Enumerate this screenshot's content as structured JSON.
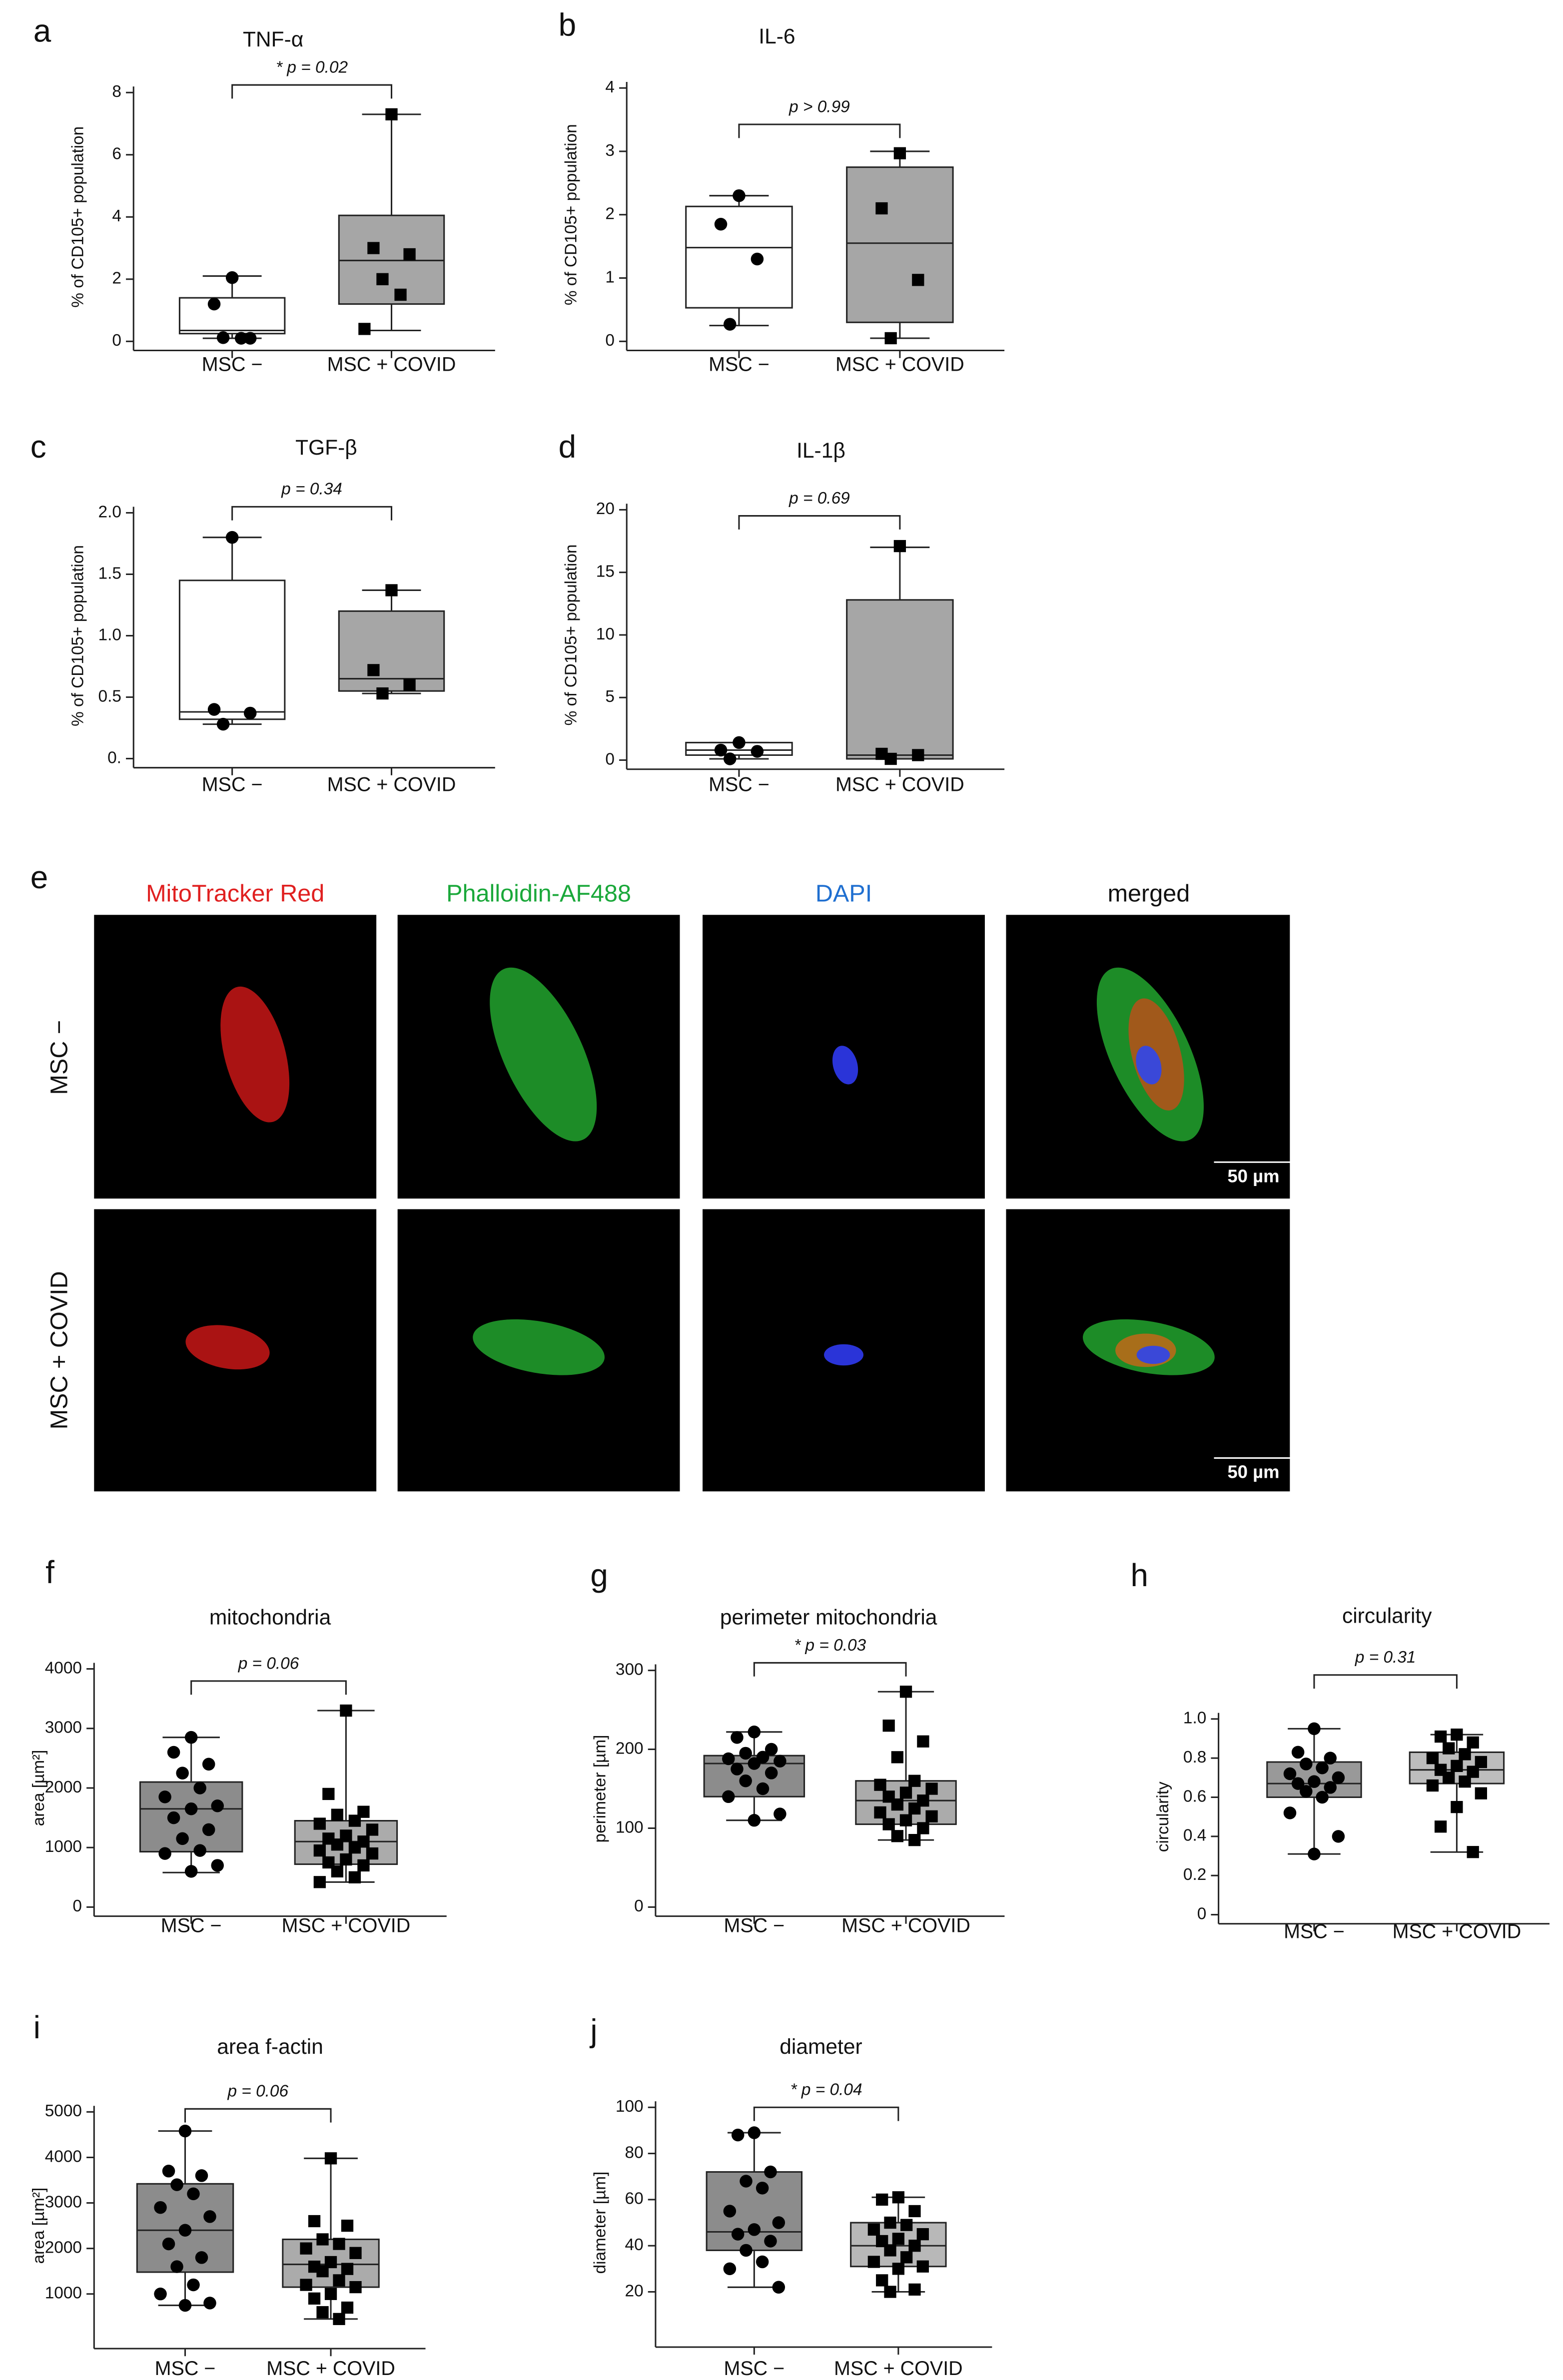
{
  "chart_data": [
    {
      "type": "box",
      "panel_label": "a",
      "title": "TNF-α",
      "ylabel": "% of CD105+ population",
      "categories": [
        "MSC −",
        "MSC + COVID"
      ],
      "annotation": "* p = 0.02",
      "ylim": [
        0,
        8
      ],
      "yticks": [
        0,
        2,
        4,
        6,
        8
      ],
      "box_colors": [
        "#ffffff",
        "#a6a6a6"
      ],
      "markers": [
        "circle",
        "square"
      ],
      "boxes": [
        {
          "min": 0.1,
          "q1": 0.25,
          "median": 0.35,
          "q3": 1.4,
          "max": 2.1,
          "points": [
            2.05,
            1.2,
            0.1,
            0.12,
            0.1
          ]
        },
        {
          "min": 0.35,
          "q1": 1.2,
          "median": 2.6,
          "q3": 4.05,
          "max": 7.3,
          "points": [
            7.3,
            3.0,
            2.8,
            2.0,
            1.5,
            0.4
          ]
        }
      ]
    },
    {
      "type": "box",
      "panel_label": "b",
      "title": "IL-6",
      "ylabel": "% of CD105+ population",
      "categories": [
        "MSC −",
        "MSC + COVID"
      ],
      "annotation": "p > 0.99",
      "ylim": [
        0,
        4
      ],
      "yticks": [
        0,
        1,
        2,
        3,
        4
      ],
      "box_colors": [
        "#ffffff",
        "#a6a6a6"
      ],
      "markers": [
        "circle",
        "square"
      ],
      "boxes": [
        {
          "min": 0.25,
          "q1": 0.53,
          "median": 1.48,
          "q3": 2.13,
          "max": 2.3,
          "points": [
            2.3,
            1.85,
            1.3,
            0.27
          ]
        },
        {
          "min": 0.05,
          "q1": 0.3,
          "median": 1.55,
          "q3": 2.75,
          "max": 3.0,
          "points": [
            2.97,
            2.1,
            0.97,
            0.05
          ]
        }
      ]
    },
    {
      "type": "box",
      "panel_label": "c",
      "title": "TGF-β",
      "ylabel": "% of CD105+ population",
      "categories": [
        "MSC −",
        "MSC + COVID"
      ],
      "annotation": "p = 0.34",
      "ylim": [
        0,
        2
      ],
      "yticks": [
        {
          "value": 0,
          "label": "0."
        },
        0.5,
        {
          "value": 1,
          "label": "1.0"
        },
        1.5,
        {
          "value": 2,
          "label": "2.0"
        }
      ],
      "box_colors": [
        "#ffffff",
        "#a6a6a6"
      ],
      "markers": [
        "circle",
        "square"
      ],
      "boxes": [
        {
          "min": 0.28,
          "q1": 0.32,
          "median": 0.38,
          "q3": 1.45,
          "max": 1.8,
          "points": [
            1.8,
            0.4,
            0.37,
            0.28
          ]
        },
        {
          "min": 0.53,
          "q1": 0.55,
          "median": 0.65,
          "q3": 1.2,
          "max": 1.37,
          "points": [
            1.37,
            0.72,
            0.6,
            0.53
          ]
        }
      ]
    },
    {
      "type": "box",
      "panel_label": "d",
      "title": "IL-1β",
      "ylabel": "% of CD105+ population",
      "categories": [
        "MSC −",
        "MSC + COVID"
      ],
      "annotation": "p = 0.69",
      "ylim": [
        0,
        20
      ],
      "yticks": [
        0,
        5,
        10,
        15,
        20
      ],
      "box_colors": [
        "#ffffff",
        "#a6a6a6"
      ],
      "markers": [
        "circle",
        "square"
      ],
      "boxes": [
        {
          "min": 0.1,
          "q1": 0.4,
          "median": 0.8,
          "q3": 1.4,
          "max": 1.4,
          "points": [
            1.4,
            0.8,
            0.7,
            0.1
          ]
        },
        {
          "min": 0.1,
          "q1": 0.1,
          "median": 0.4,
          "q3": 12.8,
          "max": 17,
          "points": [
            17.1,
            0.5,
            0.4,
            0.1
          ]
        }
      ]
    },
    {
      "type": "box",
      "panel_label": "f",
      "title": "mitochondria",
      "ylabel": "area [µm²]",
      "categories": [
        "MSC −",
        "MSC + COVID"
      ],
      "annotation": "p = 0.06",
      "ylim": [
        0,
        4000
      ],
      "yticks": [
        0,
        1000,
        2000,
        3000,
        4000
      ],
      "box_colors": [
        "#8c8c8c",
        "#ababab"
      ],
      "markers": [
        "circle",
        "square"
      ],
      "boxes": [
        {
          "min": 580,
          "q1": 930,
          "median": 1650,
          "q3": 2100,
          "max": 2850,
          "points": [
            2850,
            2600,
            2400,
            2250,
            2000,
            1850,
            1700,
            1650,
            1500,
            1300,
            1150,
            950,
            900,
            700,
            600
          ]
        },
        {
          "min": 420,
          "q1": 720,
          "median": 1100,
          "q3": 1450,
          "max": 3300,
          "points": [
            3300,
            1900,
            1600,
            1550,
            1450,
            1400,
            1300,
            1200,
            1150,
            1100,
            1050,
            1000,
            950,
            900,
            800,
            750,
            700,
            600,
            500,
            420
          ]
        }
      ]
    },
    {
      "type": "box",
      "panel_label": "g",
      "title": "perimeter mitochondria",
      "ylabel": "perimeter [µm]",
      "categories": [
        "MSC −",
        "MSC + COVID"
      ],
      "annotation": "* p = 0.03",
      "ylim": [
        0,
        300
      ],
      "yticks": [
        0,
        100,
        200,
        300
      ],
      "box_colors": [
        "#8c8c8c",
        "#ababab"
      ],
      "markers": [
        "circle",
        "square"
      ],
      "boxes": [
        {
          "min": 110,
          "q1": 140,
          "median": 182,
          "q3": 192,
          "max": 222,
          "points": [
            222,
            215,
            200,
            195,
            190,
            188,
            185,
            182,
            175,
            170,
            160,
            150,
            140,
            118,
            110
          ]
        },
        {
          "min": 85,
          "q1": 105,
          "median": 135,
          "q3": 160,
          "max": 273,
          "points": [
            273,
            230,
            210,
            190,
            160,
            155,
            150,
            145,
            140,
            135,
            130,
            125,
            120,
            115,
            110,
            105,
            100,
            90,
            85
          ]
        }
      ]
    },
    {
      "type": "box",
      "panel_label": "h",
      "title": "circularity",
      "ylabel": "circularity",
      "categories": [
        "MSC −",
        "MSC + COVID"
      ],
      "annotation": "p = 0.31",
      "ylim": [
        0,
        1
      ],
      "yticks": [
        0,
        0.2,
        0.4,
        0.6,
        0.8,
        {
          "value": 1,
          "label": "1.0"
        }
      ],
      "box_colors": [
        "#999999",
        "#bdbdbd"
      ],
      "markers": [
        "circle",
        "square"
      ],
      "boxes": [
        {
          "min": 0.31,
          "q1": 0.6,
          "median": 0.67,
          "q3": 0.78,
          "max": 0.95,
          "points": [
            0.95,
            0.83,
            0.8,
            0.77,
            0.75,
            0.72,
            0.7,
            0.68,
            0.67,
            0.65,
            0.63,
            0.6,
            0.52,
            0.4,
            0.31
          ]
        },
        {
          "min": 0.32,
          "q1": 0.67,
          "median": 0.74,
          "q3": 0.83,
          "max": 0.92,
          "points": [
            0.92,
            0.91,
            0.88,
            0.85,
            0.82,
            0.8,
            0.78,
            0.76,
            0.74,
            0.73,
            0.7,
            0.68,
            0.66,
            0.62,
            0.55,
            0.45,
            0.32
          ]
        }
      ]
    },
    {
      "type": "box",
      "panel_label": "i",
      "title": "area f-actin",
      "ylabel": "area [µm²]",
      "categories": [
        "MSC −",
        "MSC + COVID"
      ],
      "annotation": "p = 0.06",
      "ylim": [
        0,
        5000
      ],
      "yticks": [
        1000,
        2000,
        3000,
        4000,
        5000
      ],
      "box_colors": [
        "#8c8c8c",
        "#ababab"
      ],
      "markers": [
        "circle",
        "square"
      ],
      "boxes": [
        {
          "min": 750,
          "q1": 1480,
          "median": 2400,
          "q3": 3420,
          "max": 4580,
          "points": [
            4580,
            3700,
            3600,
            3400,
            3200,
            2900,
            2700,
            2400,
            2100,
            1800,
            1600,
            1200,
            1000,
            800,
            750
          ]
        },
        {
          "min": 450,
          "q1": 1150,
          "median": 1650,
          "q3": 2200,
          "max": 3980,
          "points": [
            3980,
            2600,
            2500,
            2200,
            2100,
            2000,
            1900,
            1700,
            1600,
            1550,
            1500,
            1300,
            1200,
            1150,
            1000,
            900,
            700,
            600,
            450
          ]
        }
      ]
    },
    {
      "type": "box",
      "panel_label": "j",
      "title": "diameter",
      "ylabel": "diameter [µm]",
      "categories": [
        "MSC −",
        "MSC + COVID"
      ],
      "annotation": "* p = 0.04",
      "ylim": [
        0,
        100
      ],
      "yticks": [
        20,
        40,
        60,
        80,
        100
      ],
      "box_colors": [
        "#8c8c8c",
        "#b8b8b8"
      ],
      "markers": [
        "circle",
        "square"
      ],
      "boxes": [
        {
          "min": 22,
          "q1": 38,
          "median": 46,
          "q3": 72,
          "max": 89,
          "points": [
            89,
            88,
            72,
            68,
            65,
            55,
            50,
            47,
            45,
            42,
            38,
            33,
            30,
            22
          ]
        },
        {
          "min": 20,
          "q1": 31,
          "median": 40,
          "q3": 50,
          "max": 61,
          "points": [
            61,
            60,
            55,
            50,
            49,
            47,
            45,
            43,
            42,
            40,
            38,
            35,
            33,
            31,
            30,
            25,
            21,
            20
          ]
        }
      ]
    }
  ],
  "microscopy": {
    "panel_label": "e",
    "columns": [
      "MitoTracker Red",
      "Phalloidin-AF488",
      "DAPI",
      "merged"
    ],
    "rows": [
      "MSC −",
      "MSC + COVID"
    ],
    "scale_bars": [
      "50 µm",
      "50 µm"
    ]
  }
}
